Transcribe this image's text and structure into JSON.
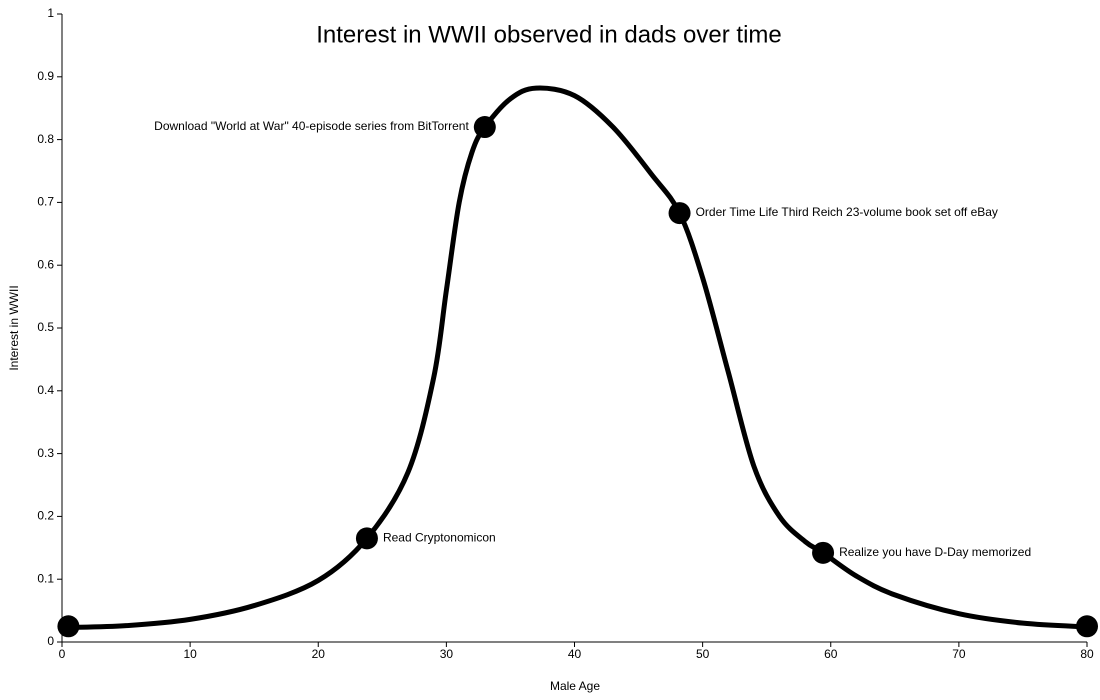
{
  "chart_data": {
    "type": "line",
    "title": "Interest in WWII observed in dads over time",
    "x_label": "Male Age",
    "y_label": "Interest in WWII",
    "xlim": [
      0,
      80
    ],
    "xticks": [
      0,
      10,
      20,
      30,
      40,
      50,
      60,
      70,
      80
    ],
    "ylim": [
      0,
      1
    ],
    "yticks": [
      0,
      0.1,
      0.2,
      0.3,
      0.4,
      0.5,
      0.6,
      0.7,
      0.8,
      0.9,
      1
    ],
    "grid": false,
    "series": [
      {
        "color": "#000000",
        "x": [
          0.5,
          5,
          10,
          15,
          20,
          23.8,
          27,
          29,
          30,
          31,
          32,
          33,
          35,
          37,
          40,
          43,
          46,
          48.2,
          50,
          52,
          54,
          56,
          58,
          59.4,
          62,
          65,
          70,
          75,
          80
        ],
        "values": [
          0.023,
          0.026,
          0.036,
          0.058,
          0.098,
          0.165,
          0.27,
          0.42,
          0.56,
          0.7,
          0.78,
          0.82,
          0.865,
          0.882,
          0.87,
          0.82,
          0.745,
          0.683,
          0.58,
          0.43,
          0.28,
          0.2,
          0.16,
          0.142,
          0.105,
          0.075,
          0.045,
          0.03,
          0.024
        ]
      }
    ],
    "markers": {
      "color": "#000000",
      "x": [
        0.5,
        23.8,
        33,
        48.2,
        59.4,
        80
      ],
      "values": [
        0.025,
        0.165,
        0.82,
        0.683,
        0.142,
        0.025
      ],
      "labels": [
        null,
        "Read Cryptonomicon",
        "Download \"World at War\" 40-episode series from BitTorrent",
        "Order Time Life Third Reich 23-volume book set off eBay",
        "Realize you have D-Day memorized",
        null
      ]
    }
  }
}
